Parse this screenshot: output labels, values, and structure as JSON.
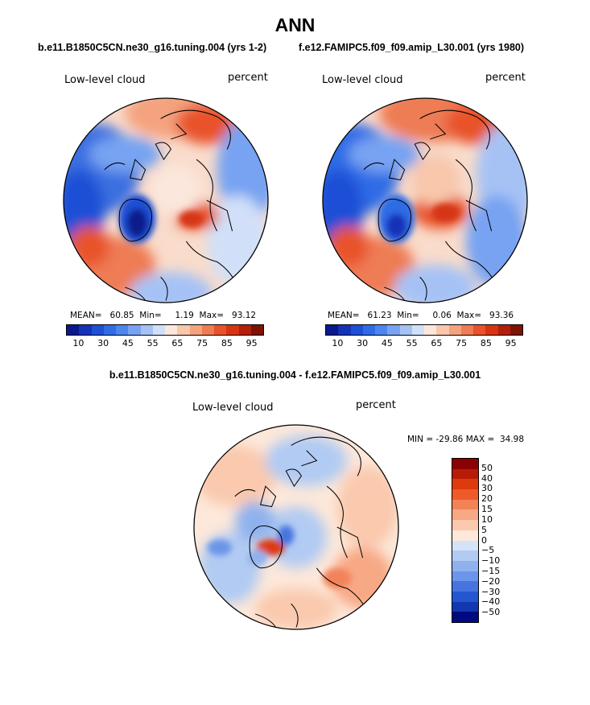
{
  "season": "ANN",
  "panels": {
    "left": {
      "case": "b.e11.B1850C5CN.ne30_g16.tuning.004 (yrs 1-2)",
      "variable": "Low-level cloud",
      "units": "percent",
      "mean_label": "MEAN=",
      "mean": "60.85",
      "min_label": "Min=",
      "min": "1.19",
      "max_label": "Max=",
      "max": "93.12"
    },
    "right": {
      "case": "f.e12.FAMIPC5.f09_f09.amip_L30.001 (yrs 1980)",
      "variable": "Low-level cloud",
      "units": "percent",
      "mean_label": "MEAN=",
      "mean": "61.23",
      "min_label": "Min=",
      "min": "0.06",
      "max_label": "Max=",
      "max": "93.36"
    },
    "diff": {
      "title": "b.e11.B1850C5CN.ne30_g16.tuning.004 - f.e12.FAMIPC5.f09_f09.amip_L30.001",
      "variable": "Low-level cloud",
      "units": "percent",
      "min_label": "MIN =",
      "min": "-29.86",
      "max_label": "MAX =",
      "max": "34.98"
    }
  },
  "abs_colorbar": {
    "colors": [
      "#0a1a8c",
      "#1533b8",
      "#1f4fd6",
      "#2f6ce6",
      "#4d86ee",
      "#77a3f2",
      "#a6c2f5",
      "#d1e0f8",
      "#fbe7dc",
      "#f8c7ac",
      "#f4a37e",
      "#ee7c54",
      "#e8532c",
      "#d63413",
      "#b31f08",
      "#7d1300"
    ],
    "ticks": [
      "10",
      "30",
      "45",
      "55",
      "65",
      "75",
      "85",
      "95"
    ]
  },
  "diff_colorbar": {
    "colors": [
      "#8b0000",
      "#b81c06",
      "#dd3a10",
      "#ee5a2a",
      "#f38258",
      "#f7a884",
      "#fac9ae",
      "#fde8da",
      "#d4e3f7",
      "#b1cbf3",
      "#8fb2ee",
      "#6b95e8",
      "#4774e0",
      "#2456d2",
      "#1238b0",
      "#000a80"
    ],
    "ticks": [
      "50",
      "40",
      "30",
      "20",
      "15",
      "10",
      "5",
      "0",
      "−5",
      "−10",
      "−15",
      "−20",
      "−30",
      "−40",
      "−50"
    ]
  }
}
